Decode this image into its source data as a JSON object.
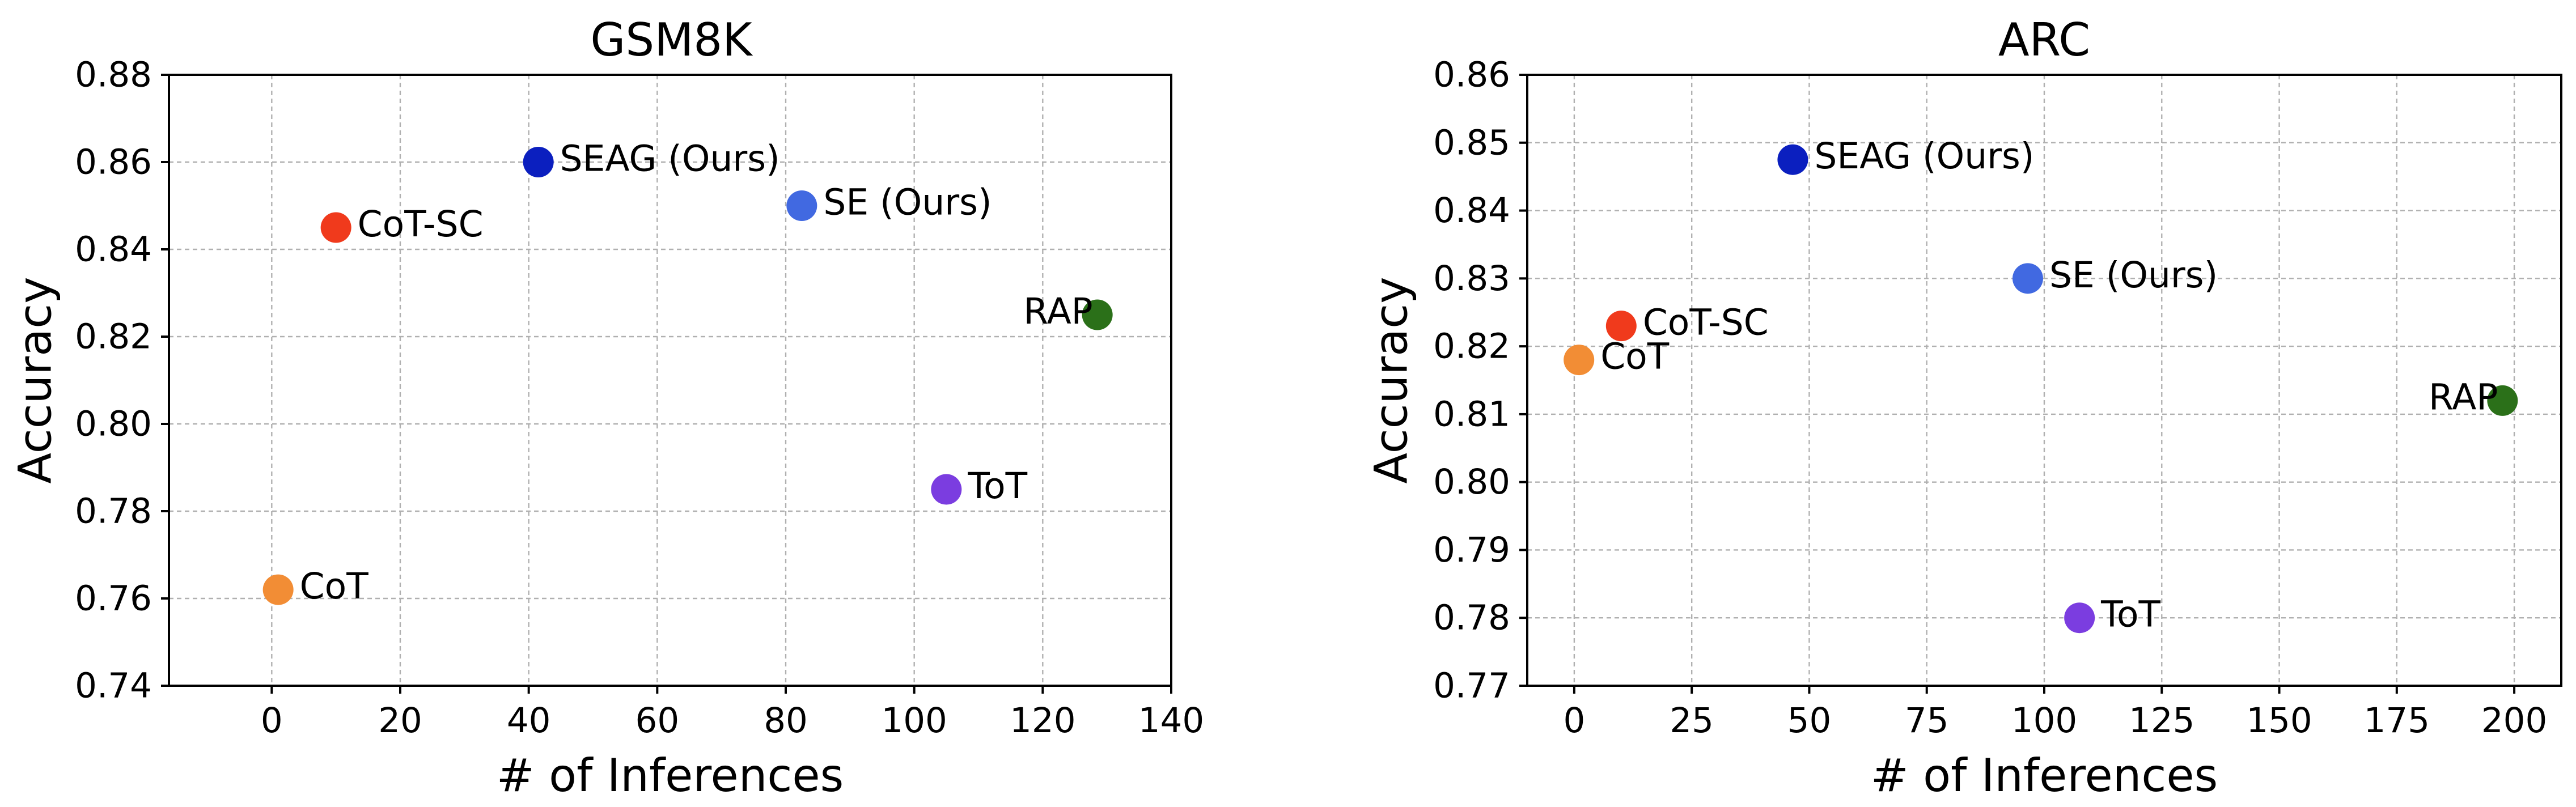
{
  "chart_data": [
    {
      "type": "scatter",
      "title": "GSM8K",
      "xlabel": "# of Inferences",
      "ylabel": "Accuracy",
      "xlim": [
        -16,
        140
      ],
      "ylim": [
        0.74,
        0.88
      ],
      "xticks": [
        0,
        20,
        40,
        60,
        80,
        100,
        120,
        140
      ],
      "xtick_labels": [
        "0",
        "20",
        "40",
        "60",
        "80",
        "100",
        "120",
        "140"
      ],
      "yticks": [
        0.74,
        0.76,
        0.78,
        0.8,
        0.82,
        0.84,
        0.86,
        0.88
      ],
      "ytick_labels": [
        "0.74",
        "0.76",
        "0.78",
        "0.80",
        "0.82",
        "0.84",
        "0.86",
        "0.88"
      ],
      "grid": true,
      "points": [
        {
          "label": "SEAG (Ours)",
          "x": 41.5,
          "y": 0.86,
          "color": "#0b1fbf",
          "label_side": "right"
        },
        {
          "label": "SE (Ours)",
          "x": 82.5,
          "y": 0.85,
          "color": "#4169e1",
          "label_side": "right"
        },
        {
          "label": "CoT-SC",
          "x": 10,
          "y": 0.845,
          "color": "#f03a1c",
          "label_side": "right"
        },
        {
          "label": "RAP",
          "x": 128.5,
          "y": 0.825,
          "color": "#2b7019",
          "label_side": "left"
        },
        {
          "label": "ToT",
          "x": 105,
          "y": 0.785,
          "color": "#7b3de0",
          "label_side": "right"
        },
        {
          "label": "CoT",
          "x": 1,
          "y": 0.762,
          "color": "#f28d35",
          "label_side": "right"
        }
      ]
    },
    {
      "type": "scatter",
      "title": "ARC",
      "xlabel": "# of Inferences",
      "ylabel": "Accuracy",
      "xlim": [
        -10,
        210
      ],
      "ylim": [
        0.77,
        0.86
      ],
      "xticks": [
        0,
        25,
        50,
        75,
        100,
        125,
        150,
        175,
        200
      ],
      "xtick_labels": [
        "0",
        "25",
        "50",
        "75",
        "100",
        "125",
        "150",
        "175",
        "200"
      ],
      "yticks": [
        0.77,
        0.78,
        0.79,
        0.8,
        0.81,
        0.82,
        0.83,
        0.84,
        0.85,
        0.86
      ],
      "ytick_labels": [
        "0.77",
        "0.78",
        "0.79",
        "0.80",
        "0.81",
        "0.82",
        "0.83",
        "0.84",
        "0.85",
        "0.86"
      ],
      "grid": true,
      "points": [
        {
          "label": "SEAG (Ours)",
          "x": 46.5,
          "y": 0.8475,
          "color": "#0b1fbf",
          "label_side": "right"
        },
        {
          "label": "SE (Ours)",
          "x": 96.5,
          "y": 0.83,
          "color": "#4169e1",
          "label_side": "right"
        },
        {
          "label": "CoT-SC",
          "x": 10,
          "y": 0.823,
          "color": "#f03a1c",
          "label_side": "right"
        },
        {
          "label": "CoT",
          "x": 1,
          "y": 0.818,
          "color": "#f28d35",
          "label_side": "right"
        },
        {
          "label": "RAP",
          "x": 197.5,
          "y": 0.812,
          "color": "#2b7019",
          "label_side": "left"
        },
        {
          "label": "ToT",
          "x": 107.5,
          "y": 0.78,
          "color": "#7b3de0",
          "label_side": "right"
        }
      ]
    }
  ]
}
